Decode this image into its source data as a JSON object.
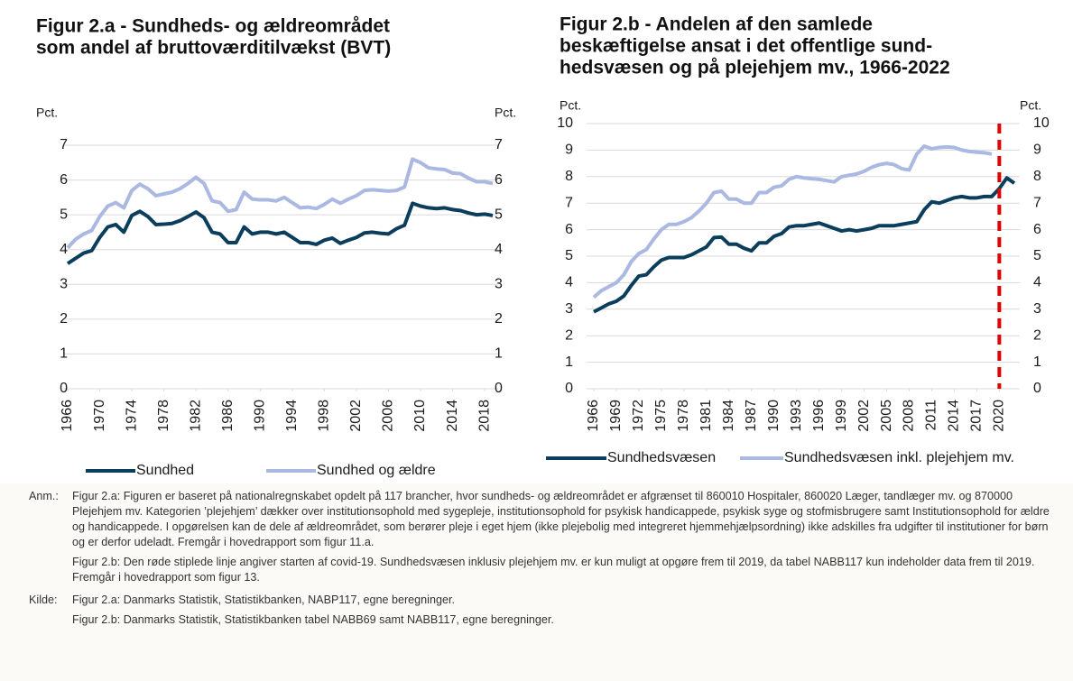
{
  "chart_data": [
    {
      "type": "line",
      "title": [
        "Figur 2.a - Sundheds- og ældreområdet",
        "som andel af bruttoværditilvækst (BVT)"
      ],
      "y_label": "Pct.",
      "y2_label": "Pct.",
      "x": [
        1966,
        1967,
        1968,
        1969,
        1970,
        1971,
        1972,
        1973,
        1974,
        1975,
        1976,
        1977,
        1978,
        1979,
        1980,
        1981,
        1982,
        1983,
        1984,
        1985,
        1986,
        1987,
        1988,
        1989,
        1990,
        1991,
        1992,
        1993,
        1994,
        1995,
        1996,
        1997,
        1998,
        1999,
        2000,
        2001,
        2002,
        2003,
        2004,
        2005,
        2006,
        2007,
        2008,
        2009,
        2010,
        2011,
        2012,
        2013,
        2014,
        2015,
        2016,
        2017,
        2018,
        2019
      ],
      "xlim": [
        1966,
        2019
      ],
      "xticks": [
        1966,
        1970,
        1974,
        1978,
        1982,
        1986,
        1990,
        1994,
        1998,
        2002,
        2006,
        2010,
        2014,
        2018
      ],
      "ylim": [
        0,
        7
      ],
      "yticks": [
        0,
        1,
        2,
        3,
        4,
        5,
        6,
        7
      ],
      "y2lim": [
        0,
        7
      ],
      "y2ticks": [
        0,
        1,
        2,
        3,
        4,
        5,
        6,
        7
      ],
      "grid": true,
      "series": [
        {
          "name": "Sundhed",
          "color": "#0b3d5c",
          "values": [
            3.6,
            3.75,
            3.9,
            3.97,
            4.35,
            4.65,
            4.72,
            4.5,
            4.98,
            5.1,
            4.95,
            4.72,
            4.73,
            4.75,
            4.83,
            4.95,
            5.08,
            4.92,
            4.5,
            4.45,
            4.2,
            4.2,
            4.65,
            4.45,
            4.5,
            4.5,
            4.45,
            4.5,
            4.35,
            4.2,
            4.2,
            4.15,
            4.27,
            4.33,
            4.18,
            4.27,
            4.35,
            4.48,
            4.5,
            4.47,
            4.45,
            4.6,
            4.7,
            5.33,
            5.25,
            5.2,
            5.18,
            5.2,
            5.15,
            5.12,
            5.05,
            5.0,
            5.02,
            4.98
          ]
        },
        {
          "name": "Sundhed og ældre",
          "color": "#aab8e2",
          "values": [
            4.05,
            4.3,
            4.45,
            4.55,
            4.95,
            5.25,
            5.35,
            5.2,
            5.7,
            5.88,
            5.75,
            5.55,
            5.6,
            5.65,
            5.75,
            5.9,
            6.08,
            5.9,
            5.4,
            5.35,
            5.1,
            5.15,
            5.65,
            5.45,
            5.43,
            5.43,
            5.4,
            5.5,
            5.35,
            5.2,
            5.22,
            5.18,
            5.3,
            5.45,
            5.33,
            5.45,
            5.55,
            5.7,
            5.72,
            5.7,
            5.68,
            5.7,
            5.8,
            6.6,
            6.5,
            6.35,
            6.32,
            6.3,
            6.2,
            6.18,
            6.05,
            5.95,
            5.95,
            5.9
          ]
        }
      ]
    },
    {
      "type": "line",
      "title": [
        "Figur 2.b - Andelen af den samlede",
        "beskæftigelse ansat i det offentlige sund-",
        "hedsvæsen og på plejehjem mv., 1966-2022"
      ],
      "y_label": "Pct.",
      "y2_label": "Pct.",
      "x": [
        1966,
        1967,
        1968,
        1969,
        1970,
        1971,
        1972,
        1973,
        1974,
        1975,
        1976,
        1977,
        1978,
        1979,
        1980,
        1981,
        1982,
        1983,
        1984,
        1985,
        1986,
        1987,
        1988,
        1989,
        1990,
        1991,
        1992,
        1993,
        1994,
        1995,
        1996,
        1997,
        1998,
        1999,
        2000,
        2001,
        2002,
        2003,
        2004,
        2005,
        2006,
        2007,
        2008,
        2009,
        2010,
        2011,
        2012,
        2013,
        2014,
        2015,
        2016,
        2017,
        2018,
        2019,
        2020,
        2021,
        2022
      ],
      "xlim": [
        1966,
        2022
      ],
      "xticks": [
        1966,
        1969,
        1972,
        1975,
        1978,
        1981,
        1984,
        1987,
        1990,
        1993,
        1996,
        1999,
        2002,
        2005,
        2008,
        2011,
        2014,
        2017,
        2020
      ],
      "ylim": [
        0,
        10
      ],
      "yticks": [
        0,
        1,
        2,
        3,
        4,
        5,
        6,
        7,
        8,
        9,
        10
      ],
      "y2lim": [
        0,
        10
      ],
      "y2ticks": [
        0,
        1,
        2,
        3,
        4,
        5,
        6,
        7,
        8,
        9,
        10
      ],
      "grid": true,
      "vline": {
        "x": 2020,
        "color": "#e00000"
      },
      "series": [
        {
          "name": "Sundhedsvæsen",
          "color": "#0b3d5c",
          "values": [
            2.9,
            3.05,
            3.2,
            3.3,
            3.5,
            3.9,
            4.25,
            4.3,
            4.6,
            4.85,
            4.95,
            4.95,
            4.95,
            5.05,
            5.2,
            5.35,
            5.7,
            5.72,
            5.45,
            5.45,
            5.3,
            5.2,
            5.5,
            5.5,
            5.75,
            5.85,
            6.1,
            6.15,
            6.15,
            6.2,
            6.25,
            6.15,
            6.05,
            5.95,
            6.0,
            5.95,
            6.0,
            6.05,
            6.15,
            6.15,
            6.15,
            6.2,
            6.25,
            6.3,
            6.75,
            7.05,
            7.0,
            7.1,
            7.2,
            7.25,
            7.2,
            7.2,
            7.25,
            7.25,
            7.55,
            7.95,
            7.75
          ]
        },
        {
          "name": "Sundhedsvæsen inkl. plejehjem mv.",
          "color": "#aab8e2",
          "values": [
            3.45,
            3.7,
            3.85,
            4.0,
            4.3,
            4.8,
            5.1,
            5.25,
            5.65,
            6.0,
            6.2,
            6.2,
            6.3,
            6.45,
            6.7,
            7.0,
            7.4,
            7.45,
            7.15,
            7.15,
            7.0,
            7.0,
            7.4,
            7.4,
            7.6,
            7.65,
            7.9,
            8.0,
            7.95,
            7.92,
            7.9,
            7.85,
            7.8,
            8.0,
            8.05,
            8.1,
            8.2,
            8.35,
            8.45,
            8.5,
            8.45,
            8.3,
            8.25,
            8.85,
            9.15,
            9.05,
            9.1,
            9.12,
            9.1,
            9.0,
            8.95,
            8.92,
            8.9,
            8.85,
            null,
            null,
            null
          ]
        }
      ]
    }
  ],
  "notes": [
    {
      "label": "Anm.:",
      "paragraphs": [
        "Figur 2.a: Figuren er baseret på nationalregnskabet opdelt på 117 brancher, hvor sundheds- og ældreområdet er afgrænset til 860010 Hospitaler, 860020 Læger, tandlæger mv. og 870000 Plejehjem mv. Kategorien ’plejehjem’ dækker over institutionsophold med sygepleje, institutionsophold for psykisk handicappede, psykisk syge og stofmisbrugere samt Institutionsophold for ældre og handicappede. I opgørelsen kan de dele af ældreområdet, som berører pleje i eget hjem (ikke plejebolig med integreret hjemmehjælpsordning) ikke adskilles fra udgifter til institutioner for børn og er derfor udeladt. Fremgår i hovedrapport som figur 11.a.",
        "Figur 2.b: Den røde stiplede linje angiver starten af covid-19. Sundhedsvæsen inklusiv plejehjem mv. er kun muligt at opgøre frem til 2019, da tabel NABB117 kun indeholder data frem til 2019. Fremgår i hovedrapport som figur 13."
      ]
    },
    {
      "label": "Kilde:",
      "paragraphs": [
        "Figur 2.a: Danmarks Statistik, Statistikbanken, NABP117, egne beregninger.",
        "Figur 2.b: Danmarks Statistik, Statistikbanken tabel NABB69 samt NABB117, egne beregninger."
      ]
    }
  ]
}
